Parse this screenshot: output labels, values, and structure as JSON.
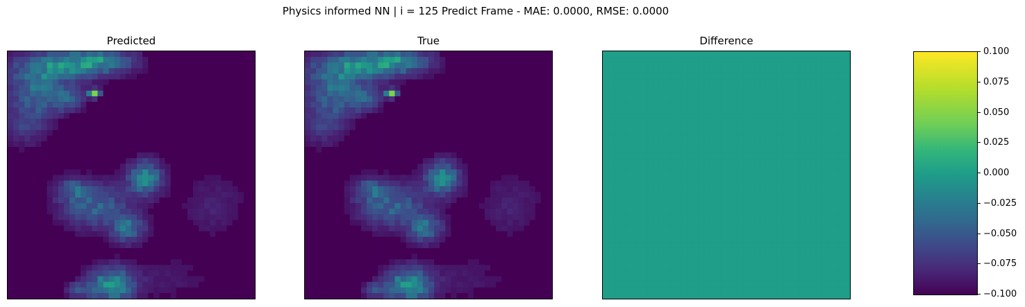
{
  "suptitle": "Physics informed NN | i = 125 Predict Frame - MAE: 0.0000, RMSE: 0.0000",
  "chart_data": [
    {
      "type": "heatmap",
      "title": "Predicted",
      "grid": false,
      "colormap": "viridis",
      "ylim_color": [
        -0.1,
        0.1
      ],
      "resolution": [
        44,
        44
      ],
      "blobs": [
        {
          "cx": 10,
          "cy": 2,
          "sx": 9,
          "sy": 2.5,
          "v": 0.35
        },
        {
          "cx": 16,
          "cy": 1,
          "sx": 6,
          "sy": 2,
          "v": 0.25
        },
        {
          "cx": 5,
          "cy": 6,
          "sx": 5,
          "sy": 4,
          "v": 0.3
        },
        {
          "cx": 3,
          "cy": 12,
          "sx": 4,
          "sy": 4,
          "v": 0.18
        },
        {
          "cx": 10,
          "cy": 8,
          "sx": 3,
          "sy": 2,
          "v": 0.25
        },
        {
          "cx": 15,
          "cy": 7,
          "sx": 1,
          "sy": 0.7,
          "v": 0.9
        },
        {
          "cx": 24,
          "cy": 22,
          "sx": 3,
          "sy": 3,
          "v": 0.4
        },
        {
          "cx": 15,
          "cy": 27,
          "sx": 6,
          "sy": 4,
          "v": 0.28
        },
        {
          "cx": 11,
          "cy": 24,
          "sx": 3,
          "sy": 2,
          "v": 0.2
        },
        {
          "cx": 21,
          "cy": 31,
          "sx": 3,
          "sy": 2.5,
          "v": 0.3
        },
        {
          "cx": 18,
          "cy": 41,
          "sx": 4,
          "sy": 3,
          "v": 0.45
        },
        {
          "cx": 12,
          "cy": 42,
          "sx": 2,
          "sy": 1.5,
          "v": 0.2
        },
        {
          "cx": 36,
          "cy": 27,
          "sx": 6,
          "sy": 6,
          "v": 0.08
        },
        {
          "cx": 28,
          "cy": 40,
          "sx": 8,
          "sy": 4,
          "v": 0.06
        }
      ]
    },
    {
      "type": "heatmap",
      "title": "True",
      "grid": false,
      "colormap": "viridis",
      "same_as": "Predicted"
    },
    {
      "type": "heatmap",
      "title": "Difference",
      "grid": false,
      "colormap": "viridis",
      "uniform_value": 0.0
    }
  ],
  "colorbar": {
    "range": [
      -0.1,
      0.1
    ],
    "ticks": [
      0.1,
      0.075,
      0.05,
      0.025,
      0.0,
      -0.025,
      -0.05,
      -0.075,
      -0.1
    ],
    "tick_labels": [
      "0.100",
      "0.075",
      "0.050",
      "0.025",
      "0.000",
      "−0.025",
      "−0.050",
      "−0.075",
      "−0.100"
    ]
  },
  "colors": {
    "viridis_low": "#440154",
    "viridis_mid": "#21918c",
    "viridis_high": "#fde725"
  }
}
